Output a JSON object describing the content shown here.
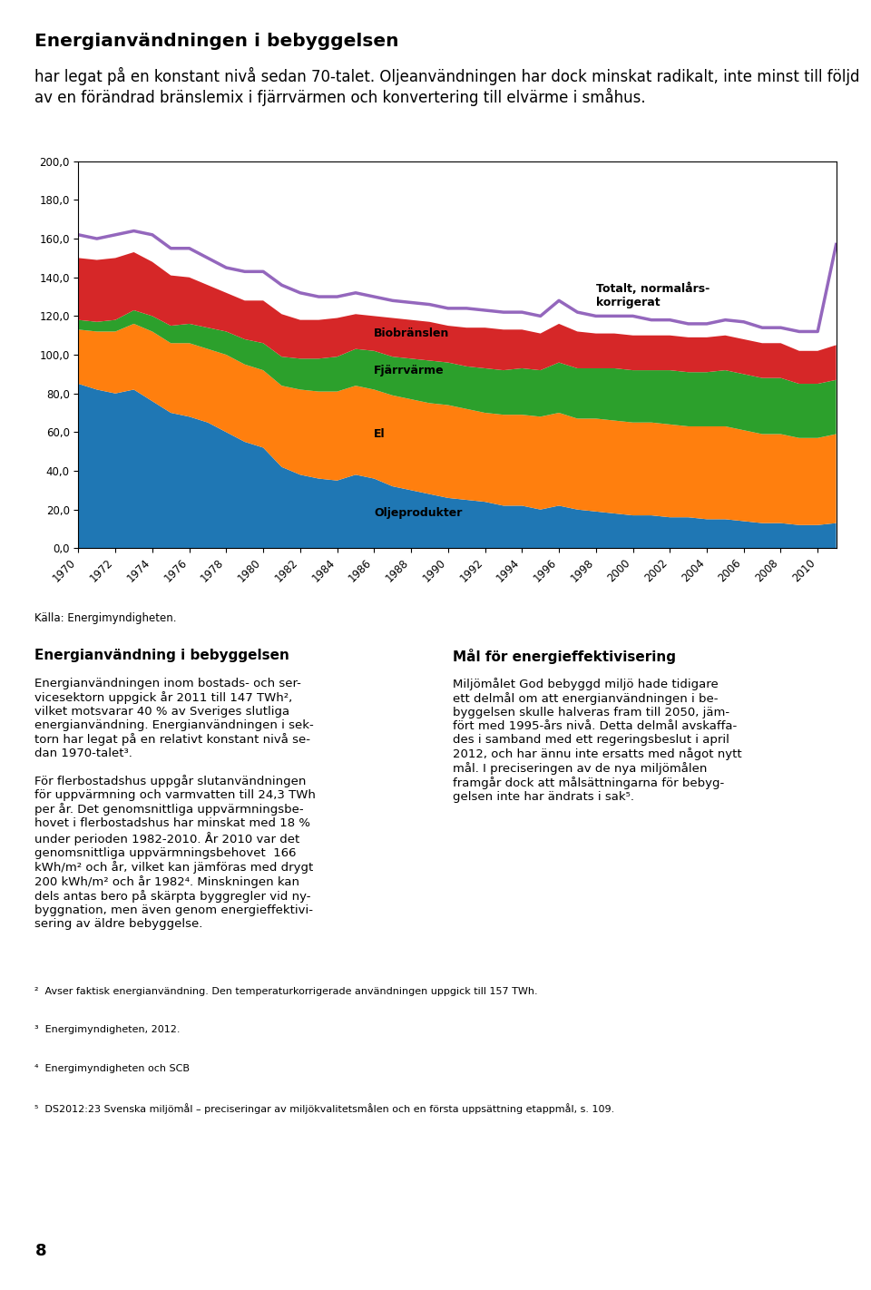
{
  "chart_data": {
    "type": "area",
    "stacked": true,
    "title": "Energianvändningen i bebyggelsen",
    "subtitle": "har legat på en konstant nivå sedan 70-talet. Oljeanvändningen har dock minskat radikalt, inte minst till följd av en förändrad bränslemix i fjärrvärmen och konvertering till elvärme i småhus.",
    "x": [
      1970,
      1971,
      1972,
      1973,
      1974,
      1975,
      1976,
      1977,
      1978,
      1979,
      1980,
      1981,
      1982,
      1983,
      1984,
      1985,
      1986,
      1987,
      1988,
      1989,
      1990,
      1991,
      1992,
      1993,
      1994,
      1995,
      1996,
      1997,
      1998,
      1999,
      2000,
      2001,
      2002,
      2003,
      2004,
      2005,
      2006,
      2007,
      2008,
      2009,
      2010,
      2011
    ],
    "series": [
      {
        "name": "Oljeprodukter",
        "type": "area",
        "values": [
          85,
          82,
          80,
          82,
          76,
          70,
          68,
          65,
          60,
          55,
          52,
          42,
          38,
          36,
          35,
          38,
          36,
          32,
          30,
          28,
          26,
          25,
          24,
          22,
          22,
          20,
          22,
          20,
          19,
          18,
          17,
          17,
          16,
          16,
          15,
          15,
          14,
          13,
          13,
          12,
          12,
          13
        ]
      },
      {
        "name": "El",
        "type": "area",
        "values": [
          28,
          30,
          32,
          34,
          36,
          36,
          38,
          38,
          40,
          40,
          40,
          42,
          44,
          45,
          46,
          46,
          46,
          47,
          47,
          47,
          48,
          47,
          46,
          47,
          47,
          48,
          48,
          47,
          48,
          48,
          48,
          48,
          48,
          47,
          48,
          48,
          47,
          46,
          46,
          45,
          45,
          46
        ]
      },
      {
        "name": "Fjärrvärme",
        "type": "area",
        "values": [
          5,
          5,
          6,
          7,
          8,
          9,
          10,
          11,
          12,
          13,
          14,
          15,
          16,
          17,
          18,
          19,
          20,
          20,
          21,
          22,
          22,
          22,
          23,
          23,
          24,
          24,
          26,
          26,
          26,
          27,
          27,
          27,
          28,
          28,
          28,
          29,
          29,
          29,
          29,
          28,
          28,
          28
        ]
      },
      {
        "name": "Biobränslen",
        "type": "area",
        "values": [
          32,
          32,
          32,
          30,
          28,
          26,
          24,
          22,
          20,
          20,
          22,
          22,
          20,
          20,
          20,
          18,
          18,
          20,
          20,
          20,
          19,
          20,
          21,
          21,
          20,
          19,
          20,
          19,
          18,
          18,
          18,
          18,
          18,
          18,
          18,
          18,
          18,
          18,
          18,
          17,
          17,
          18
        ]
      },
      {
        "name": "Totalt, normalårs-\nkorrigerat",
        "type": "line",
        "values": [
          162,
          160,
          162,
          164,
          162,
          155,
          155,
          150,
          145,
          143,
          143,
          136,
          132,
          130,
          130,
          132,
          130,
          128,
          127,
          126,
          124,
          124,
          123,
          122,
          122,
          120,
          128,
          122,
          120,
          120,
          120,
          118,
          118,
          116,
          116,
          118,
          117,
          114,
          114,
          112,
          112,
          157
        ]
      }
    ],
    "xlim": [
      1970,
      2011
    ],
    "xticks": [
      1970,
      1972,
      1974,
      1976,
      1978,
      1980,
      1982,
      1984,
      1986,
      1988,
      1990,
      1992,
      1994,
      1996,
      1998,
      2000,
      2002,
      2004,
      2006,
      2008,
      2010
    ],
    "ylim": [
      0,
      200
    ],
    "yticks": [
      {
        "value": 0,
        "label": "0,0"
      },
      {
        "value": 20,
        "label": "20,0"
      },
      {
        "value": 40,
        "label": "40,0"
      },
      {
        "value": 60,
        "label": "60,0"
      },
      {
        "value": 80,
        "label": "80,0"
      },
      {
        "value": 100,
        "label": "100,0"
      },
      {
        "value": 120,
        "label": "120,0"
      },
      {
        "value": 140,
        "label": "140,0"
      },
      {
        "value": 160,
        "label": "160,0"
      },
      {
        "value": 180,
        "label": "180,0"
      },
      {
        "value": 200,
        "label": "200,0"
      }
    ],
    "grid": false,
    "annotations": [
      "Källa: Energimyndigheten.",
      "Energianvändning i bebyggelsen",
      "Energianvändningen inom bostads- och ser-\nvicesektorn uppgick år 2011 till 147 TWh²,\nvilket motsvarar 40 % av Sveriges slutliga\nenergianvändning. Energianvändningen i sek-\ntorn har legat på en relativt konstant nivå se-\ndan 1970-talet³.\n\nFör flerbostadshus uppgår slutanvändningen\nför uppvärmning och varmvatten till 24,3 TWh\nper år. Det genomsnittliga uppvärmningsbe-\nhovet i flerbostadshus har minskat med 18 %\nunder perioden 1982-2010. År 2010 var det\ngenomsnittliga uppvärmningsbehovet  166\nkWh/m² och år, vilket kan jämföras med drygt\n200 kWh/m² och år 1982⁴. Minskningen kan\ndels antas bero på skärpta byggregler vid ny-\nbyggnation, men även genom energieffektivi-\nsering av äldre bebyggelse.",
      "Mål för energieffektivisering",
      "Miljömålet God bebyggd miljö hade tidigare\nett delmål om att energianvändningen i be-\nbyggelsen skulle halveras fram till 2050, jäm-\nfört med 1995-års nivå. Detta delmål avskaffa-\ndes i samband med ett regeringsbeslut i april\n2012, och har ännu inte ersatts med något nytt\nmål. I preciseringen av de nya miljömålen\nframgår dock att målsättningarna för bebyg-\ngelsen inte har ändrats i sak⁵.",
      "²  Avser faktisk energianvändning. Den temperaturkorrigerade användningen uppgick till 157 TWh.",
      "³  Energimyndigheten, 2012.",
      "⁴  Energimyndigheten och SCB",
      "⁵  DS2012:23 Svenska miljömål – preciseringar av miljökvalitetsmålen och en första uppsättning etappmål, s. 109.",
      "8"
    ]
  }
}
